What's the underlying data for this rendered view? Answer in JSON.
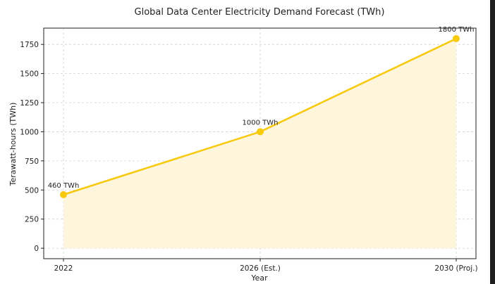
{
  "chart_data": {
    "type": "area",
    "title": "Global Data Center Electricity Demand Forecast (TWh)",
    "xlabel": "Year",
    "ylabel": "Terawatt-hours (TWh)",
    "categories": [
      "2022",
      "2026 (Est.)",
      "2030 (Proj.)"
    ],
    "series": [
      {
        "values": [
          460,
          1000,
          1800
        ]
      }
    ],
    "data_labels": [
      "460 TWh",
      "1000 TWh",
      "1800 TWh"
    ],
    "ylim": [
      -90,
      1890
    ],
    "yticks": [
      0,
      250,
      500,
      750,
      1000,
      1250,
      1500,
      1750
    ],
    "grid": true,
    "legend": "none",
    "colors": {
      "line": "#f7c90f",
      "fill": "#fdf5dc",
      "grid": "#d0d0d0"
    }
  }
}
